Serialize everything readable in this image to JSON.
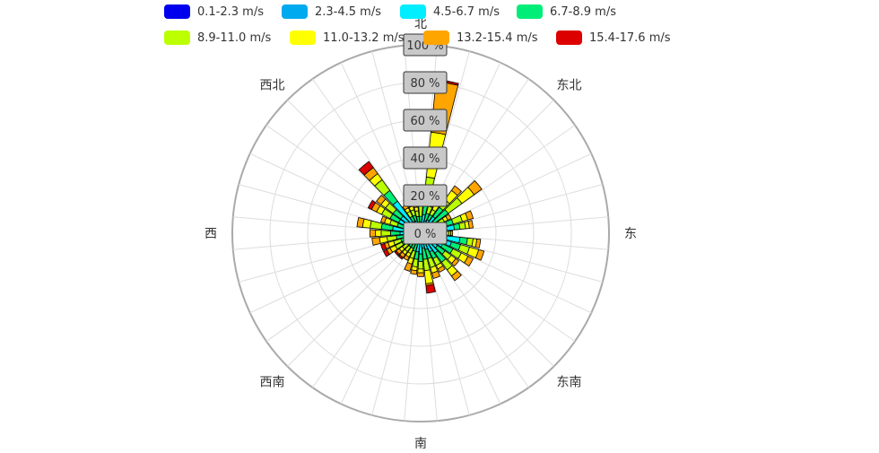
{
  "chart_data": {
    "type": "bar",
    "subtype": "polar-stacked-windrose",
    "title": "",
    "legend": {
      "placement": "top",
      "items": [
        {
          "label": "0.1-2.3 m/s",
          "color": "#0000ee"
        },
        {
          "label": "2.3-4.5 m/s",
          "color": "#00aaee"
        },
        {
          "label": "4.5-6.7 m/s",
          "color": "#00eeff"
        },
        {
          "label": "6.7-8.9 m/s",
          "color": "#00ee77"
        },
        {
          "label": "8.9-11.0 m/s",
          "color": "#bbff00"
        },
        {
          "label": "11.0-13.2 m/s",
          "color": "#ffff00"
        },
        {
          "label": "13.2-15.4 m/s",
          "color": "#ffa500"
        },
        {
          "label": "15.4-17.6 m/s",
          "color": "#dd0000"
        }
      ]
    },
    "direction_labels": [
      {
        "label": "北",
        "angle": 0
      },
      {
        "label": "东北",
        "angle": 45
      },
      {
        "label": "东",
        "angle": 90
      },
      {
        "label": "东南",
        "angle": 135
      },
      {
        "label": "南",
        "angle": 180
      },
      {
        "label": "西南",
        "angle": 225
      },
      {
        "label": "西",
        "angle": 270
      },
      {
        "label": "西北",
        "angle": 315
      }
    ],
    "radial_axis": {
      "min": 0,
      "max": 100,
      "ticks": [
        {
          "value": 0,
          "label": "0  %"
        },
        {
          "value": 20,
          "label": "20  %"
        },
        {
          "value": 40,
          "label": "40  %"
        },
        {
          "value": 60,
          "label": "60  %"
        },
        {
          "value": 80,
          "label": "80  %"
        },
        {
          "value": 100,
          "label": "100  %"
        }
      ]
    },
    "grid": true,
    "sector_count": 36,
    "sectors": [
      {
        "angle": 0,
        "values": [
          1,
          2,
          3,
          3,
          8,
          0,
          0,
          0
        ]
      },
      {
        "angle": 10,
        "values": [
          2,
          3,
          5,
          6,
          14,
          24,
          27,
          1
        ]
      },
      {
        "angle": 20,
        "values": [
          1,
          2,
          4,
          4,
          4,
          3,
          4,
          0
        ]
      },
      {
        "angle": 30,
        "values": [
          1,
          2,
          5,
          3,
          3,
          3,
          2,
          0
        ]
      },
      {
        "angle": 40,
        "values": [
          1,
          2,
          8,
          6,
          5,
          6,
          3,
          0
        ]
      },
      {
        "angle": 50,
        "values": [
          1,
          2,
          5,
          10,
          9,
          8,
          5,
          0
        ]
      },
      {
        "angle": 60,
        "values": [
          1,
          2,
          5,
          3,
          3,
          2,
          2,
          0
        ]
      },
      {
        "angle": 70,
        "values": [
          1,
          2,
          10,
          5,
          5,
          3,
          3,
          0
        ]
      },
      {
        "angle": 80,
        "values": [
          1,
          2,
          15,
          3,
          3,
          2,
          2,
          0
        ]
      },
      {
        "angle": 90,
        "values": [
          1,
          2,
          8,
          2,
          2,
          1,
          1,
          0
        ]
      },
      {
        "angle": 100,
        "values": [
          1,
          2,
          18,
          4,
          3,
          2,
          2,
          0
        ]
      },
      {
        "angle": 110,
        "values": [
          1,
          2,
          14,
          5,
          5,
          5,
          3,
          0
        ]
      },
      {
        "angle": 120,
        "values": [
          1,
          2,
          10,
          6,
          5,
          4,
          3,
          0
        ]
      },
      {
        "angle": 130,
        "values": [
          1,
          2,
          8,
          5,
          4,
          3,
          2,
          0
        ]
      },
      {
        "angle": 140,
        "values": [
          1,
          2,
          10,
          6,
          5,
          4,
          3,
          0
        ]
      },
      {
        "angle": 150,
        "values": [
          1,
          2,
          8,
          4,
          4,
          2,
          2,
          0
        ]
      },
      {
        "angle": 160,
        "values": [
          1,
          2,
          6,
          5,
          5,
          3,
          3,
          0
        ]
      },
      {
        "angle": 170,
        "values": [
          1,
          2,
          5,
          6,
          6,
          7,
          1,
          4
        ]
      },
      {
        "angle": 180,
        "values": [
          1,
          2,
          8,
          4,
          4,
          2,
          2,
          0
        ]
      },
      {
        "angle": 190,
        "values": [
          1,
          2,
          7,
          4,
          4,
          2,
          2,
          0
        ]
      },
      {
        "angle": 200,
        "values": [
          1,
          2,
          3,
          4,
          4,
          3,
          4,
          0
        ]
      },
      {
        "angle": 210,
        "values": [
          1,
          2,
          3,
          3,
          3,
          2,
          2,
          0
        ]
      },
      {
        "angle": 220,
        "values": [
          1,
          2,
          3,
          3,
          3,
          2,
          2,
          1
        ]
      },
      {
        "angle": 230,
        "values": [
          1,
          2,
          3,
          3,
          3,
          2,
          2,
          1
        ]
      },
      {
        "angle": 240,
        "values": [
          1,
          2,
          4,
          4,
          4,
          3,
          2,
          2
        ]
      },
      {
        "angle": 250,
        "values": [
          1,
          2,
          4,
          4,
          4,
          3,
          2,
          2
        ]
      },
      {
        "angle": 260,
        "values": [
          1,
          2,
          5,
          5,
          5,
          4,
          4,
          0
        ]
      },
      {
        "angle": 270,
        "values": [
          1,
          2,
          8,
          5,
          5,
          3,
          3,
          0
        ]
      },
      {
        "angle": 280,
        "values": [
          1,
          2,
          12,
          6,
          6,
          4,
          3,
          0
        ]
      },
      {
        "angle": 290,
        "values": [
          1,
          2,
          6,
          4,
          4,
          3,
          2,
          0
        ]
      },
      {
        "angle": 300,
        "values": [
          1,
          2,
          10,
          5,
          5,
          3,
          3,
          2
        ]
      },
      {
        "angle": 310,
        "values": [
          1,
          2,
          10,
          5,
          5,
          3,
          3,
          0
        ]
      },
      {
        "angle": 320,
        "values": [
          1,
          2,
          18,
          7,
          7,
          4,
          4,
          4
        ]
      },
      {
        "angle": 330,
        "values": [
          1,
          2,
          4,
          3,
          3,
          2,
          2,
          0
        ]
      },
      {
        "angle": 340,
        "values": [
          1,
          2,
          4,
          3,
          3,
          2,
          2,
          0
        ]
      },
      {
        "angle": 350,
        "values": [
          1,
          2,
          3,
          3,
          3,
          2,
          2,
          0
        ]
      }
    ]
  }
}
